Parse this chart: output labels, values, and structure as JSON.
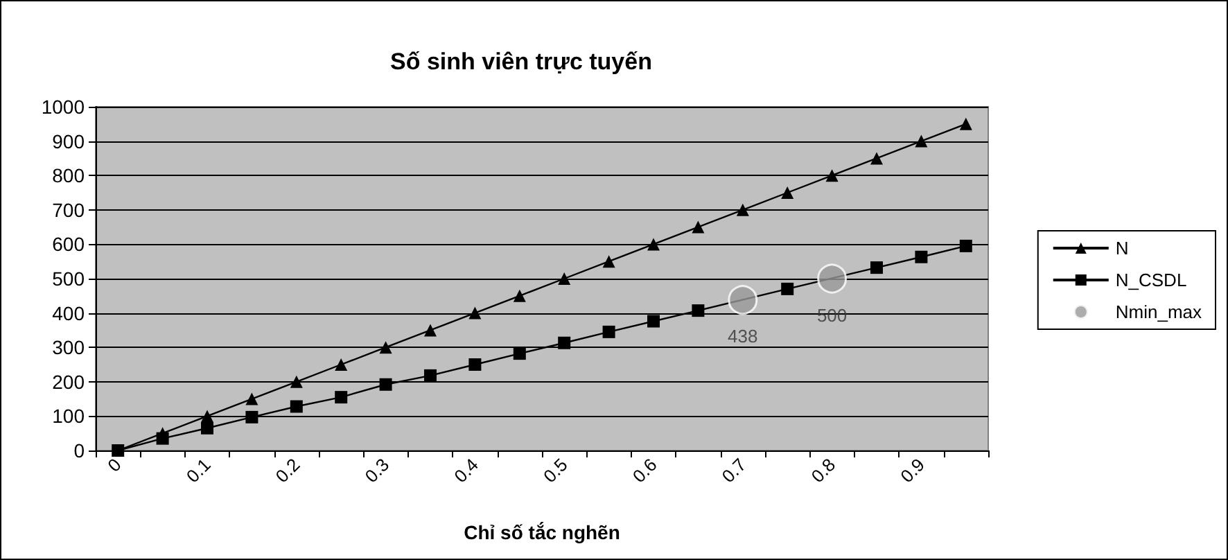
{
  "chart_data": {
    "type": "line",
    "title": "Số sinh viên trực tuyến",
    "xlabel": "Chỉ số tắc nghẽn",
    "categories": [
      "0",
      null,
      "0.1",
      null,
      "0.2",
      null,
      "0.3",
      null,
      "0.4",
      null,
      "0.5",
      null,
      "0.6",
      null,
      "0.7",
      null,
      "0.8",
      null,
      "0.9",
      null
    ],
    "series": [
      {
        "name": "N",
        "color": "#000000",
        "marker": "triangle",
        "values": [
          0,
          50,
          100,
          150,
          200,
          250,
          300,
          350,
          400,
          450,
          500,
          550,
          600,
          650,
          700,
          750,
          800,
          850,
          900,
          950
        ]
      },
      {
        "name": "N_CSDL",
        "color": "#000000",
        "marker": "square",
        "values": [
          0,
          35,
          65,
          97,
          128,
          155,
          192,
          218,
          250,
          282,
          313,
          345,
          376,
          407,
          null,
          470,
          null,
          532,
          563,
          595
        ]
      },
      {
        "name": "Nmin_max",
        "type": "scatter",
        "color": "#999999",
        "marker": "circle",
        "values": [
          null,
          null,
          null,
          null,
          null,
          null,
          null,
          null,
          null,
          null,
          null,
          null,
          null,
          null,
          438,
          null,
          500,
          null,
          null,
          null
        ],
        "value_labels": [
          null,
          null,
          null,
          null,
          null,
          null,
          null,
          null,
          null,
          null,
          null,
          null,
          null,
          null,
          "438",
          null,
          "500",
          null,
          null,
          null
        ]
      }
    ],
    "ylim": [
      0,
      1000
    ],
    "yticks": [
      0,
      100,
      200,
      300,
      400,
      500,
      600,
      700,
      800,
      900,
      1000
    ],
    "grid": "y",
    "legend": "right"
  }
}
